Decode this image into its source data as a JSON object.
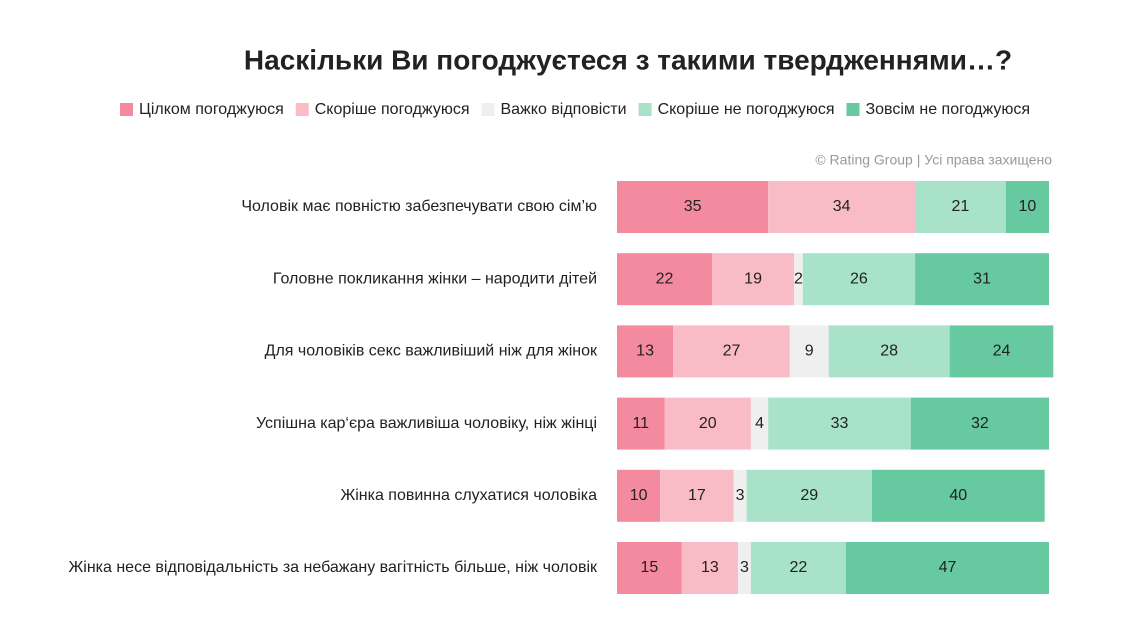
{
  "chart_data": {
    "type": "bar",
    "orientation": "horizontal",
    "stacked": true,
    "title": "Наскільки Ви погоджуєтеся з такими твердженнями…?",
    "source": "© Rating Group | Усі права захищено",
    "categories": [
      "Чоловік має повністю забезпечувати свою сім’ю",
      "Головне покликання жінки – народити дітей",
      "Для чоловіків секс важливіший ніж для жінок",
      "Успішна кар‘єра важливіша чоловіку, ніж жінці",
      "Жінка повинна слухатися чоловіка",
      "Жінка несе відповідальність за небажану вагітність більше, ніж чоловік"
    ],
    "series": [
      {
        "name": "Цілком погоджуюся",
        "color": "#f48aa0",
        "values": [
          35,
          22,
          13,
          11,
          10,
          15
        ]
      },
      {
        "name": "Скоріше погоджуюся",
        "color": "#f9bcc6",
        "values": [
          34,
          19,
          27,
          20,
          17,
          13
        ]
      },
      {
        "name": "Важко відповісти",
        "color": "#efefef",
        "values": [
          0,
          2,
          9,
          4,
          3,
          3
        ]
      },
      {
        "name": "Скоріше не погоджуюся",
        "color": "#a8e2c8",
        "values": [
          21,
          26,
          28,
          33,
          29,
          22
        ]
      },
      {
        "name": "Зовсім не погоджуюся",
        "color": "#66c9a0",
        "values": [
          10,
          31,
          24,
          32,
          40,
          47
        ]
      }
    ]
  }
}
